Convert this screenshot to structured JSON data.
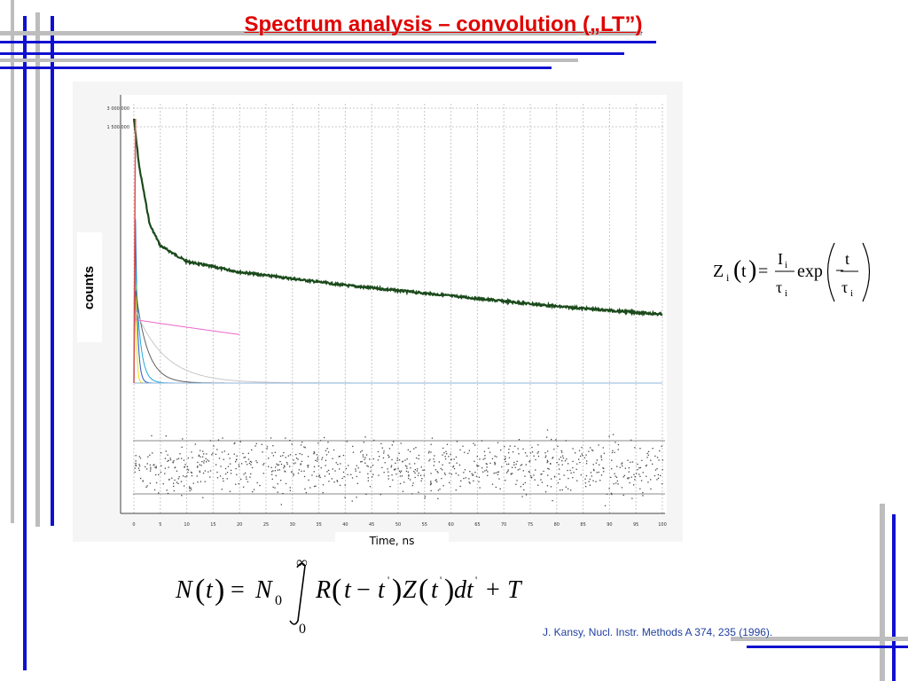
{
  "title": "Spectrum analysis  – convolution  („LT”)",
  "colors": {
    "title": "#e00000",
    "frame_gray": "#bdbdbd",
    "frame_blue": "#1010d0",
    "data_line": "#1b4a1b",
    "citation": "#1f3f9f"
  },
  "chart_data": {
    "type": "line",
    "title": "",
    "xlabel": "Time, ns",
    "ylabel": "counts",
    "xlim": [
      0,
      100
    ],
    "x_ticks": [
      "0",
      "5",
      "10",
      "15",
      "20",
      "25",
      "30",
      "35",
      "40",
      "45",
      "50",
      "55",
      "60",
      "65",
      "70",
      "75",
      "80",
      "85",
      "90",
      "95",
      "100"
    ],
    "y_ticks": [
      "3 000 000",
      "1 500 000"
    ],
    "y_scale": "log",
    "grid": true,
    "legend": "none",
    "peak_time": 0.3,
    "series": [
      {
        "kind": "measured",
        "color": "#1b4a1b",
        "description_points": [
          [
            0,
            1.0
          ],
          [
            1,
            0.82
          ],
          [
            3,
            0.6
          ],
          [
            5,
            0.52
          ],
          [
            10,
            0.46
          ],
          [
            20,
            0.42
          ],
          [
            40,
            0.37
          ],
          [
            60,
            0.33
          ],
          [
            80,
            0.29
          ],
          [
            100,
            0.26
          ]
        ]
      },
      {
        "kind": "component",
        "color": "#f0e000",
        "lifetime_ns": 0.2,
        "intensity": 0.55
      },
      {
        "kind": "component",
        "color": "#2a55c8",
        "lifetime_ns": 0.4,
        "intensity": 0.62
      },
      {
        "kind": "component",
        "color": "#22aadd",
        "lifetime_ns": 0.9,
        "intensity": 0.45
      },
      {
        "kind": "component",
        "color": "#606060",
        "lifetime_ns": 2.2,
        "intensity": 0.36
      },
      {
        "kind": "component",
        "color": "#c8c8c8",
        "lifetime_ns": 5.5,
        "intensity": 0.28
      },
      {
        "kind": "component",
        "color": "#ee66cc",
        "lifetime_ns": 120,
        "intensity": 0.24
      },
      {
        "kind": "background",
        "color": "#8cb4d8",
        "level": 0.0
      }
    ],
    "residuals": {
      "band": [
        -1,
        1
      ],
      "panel": "bottom"
    }
  },
  "formula_z": {
    "lhs": "Z",
    "lhs_sub": "i",
    "arg": "t",
    "num": "I",
    "num_sub": "i",
    "den": "τ",
    "den_sub": "i",
    "func": "exp",
    "inner_num": "− t",
    "inner_num_plain": "t",
    "inner_den": "τ",
    "inner_den_sub": "i"
  },
  "formula_n": {
    "text": "N(t) = N₀ ∫₀^∞ R(t − t') Z(t') dt' + T",
    "upper": "∞",
    "lower": "0"
  },
  "citation": "J. Kansy, Nucl. Instr. Methods  A 374, 235 (1996)."
}
